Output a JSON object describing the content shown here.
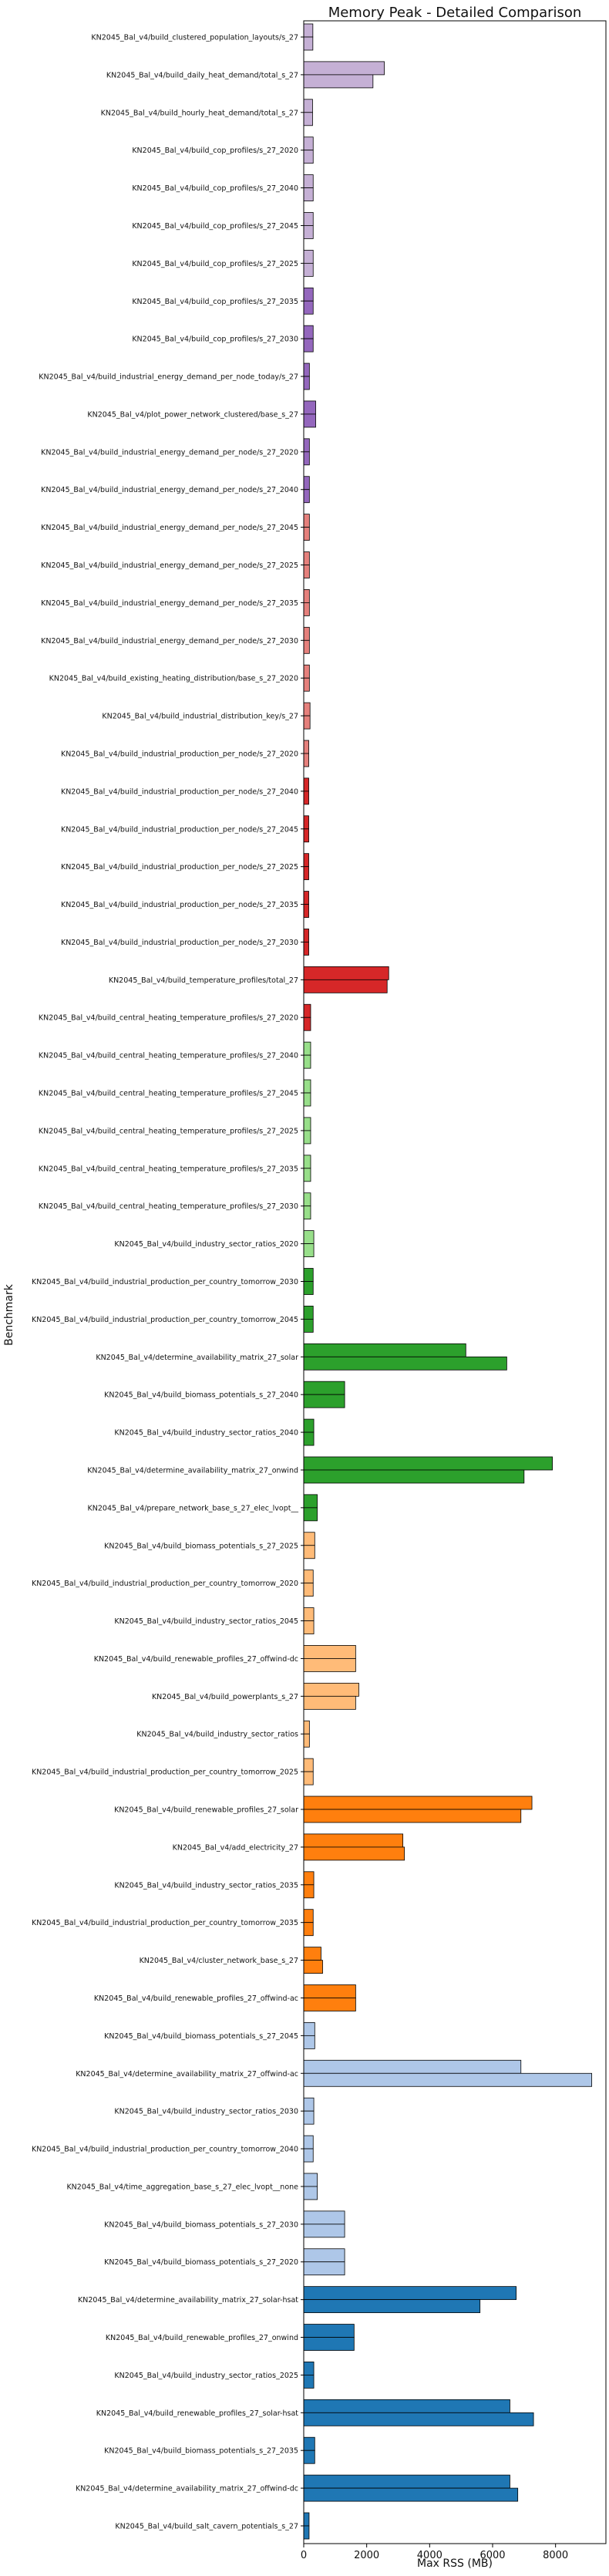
{
  "chart_data": {
    "type": "bar",
    "orientation": "horizontal",
    "title": "Memory Peak - Detailed Comparison",
    "xlabel": "Max RSS (MB)",
    "ylabel": "Benchmark",
    "xlim": [
      0,
      9600
    ],
    "xticks": [
      0,
      2000,
      4000,
      6000,
      8000
    ],
    "grid": false,
    "legend": "none",
    "benchmarks": [
      {
        "label": "KN2045_Bal_v4/build_clustered_population_layouts/s_27",
        "values": [
          290,
          290
        ],
        "color": "#c5b0d5"
      },
      {
        "label": "KN2045_Bal_v4/build_daily_heat_demand/total_s_27",
        "values": [
          2560,
          2200
        ],
        "color": "#c5b0d5"
      },
      {
        "label": "KN2045_Bal_v4/build_hourly_heat_demand/total_s_27",
        "values": [
          280,
          280
        ],
        "color": "#c5b0d5"
      },
      {
        "label": "KN2045_Bal_v4/build_cop_profiles/s_27_2020",
        "values": [
          300,
          300
        ],
        "color": "#c5b0d5"
      },
      {
        "label": "KN2045_Bal_v4/build_cop_profiles/s_27_2040",
        "values": [
          300,
          300
        ],
        "color": "#c5b0d5"
      },
      {
        "label": "KN2045_Bal_v4/build_cop_profiles/s_27_2045",
        "values": [
          300,
          300
        ],
        "color": "#c5b0d5"
      },
      {
        "label": "KN2045_Bal_v4/build_cop_profiles/s_27_2025",
        "values": [
          300,
          300
        ],
        "color": "#c5b0d5"
      },
      {
        "label": "KN2045_Bal_v4/build_cop_profiles/s_27_2035",
        "values": [
          300,
          300
        ],
        "color": "#9467bd"
      },
      {
        "label": "KN2045_Bal_v4/build_cop_profiles/s_27_2030",
        "values": [
          300,
          300
        ],
        "color": "#9467bd"
      },
      {
        "label": "KN2045_Bal_v4/build_industrial_energy_demand_per_node_today/s_27",
        "values": [
          180,
          180
        ],
        "color": "#9467bd"
      },
      {
        "label": "KN2045_Bal_v4/plot_power_network_clustered/base_s_27",
        "values": [
          380,
          380
        ],
        "color": "#9467bd"
      },
      {
        "label": "KN2045_Bal_v4/build_industrial_energy_demand_per_node/s_27_2020",
        "values": [
          180,
          180
        ],
        "color": "#9467bd"
      },
      {
        "label": "KN2045_Bal_v4/build_industrial_energy_demand_per_node/s_27_2040",
        "values": [
          180,
          180
        ],
        "color": "#9467bd"
      },
      {
        "label": "KN2045_Bal_v4/build_industrial_energy_demand_per_node/s_27_2045",
        "values": [
          180,
          180
        ],
        "color": "#e5807c"
      },
      {
        "label": "KN2045_Bal_v4/build_industrial_energy_demand_per_node/s_27_2025",
        "values": [
          180,
          180
        ],
        "color": "#e5807c"
      },
      {
        "label": "KN2045_Bal_v4/build_industrial_energy_demand_per_node/s_27_2035",
        "values": [
          180,
          180
        ],
        "color": "#e5807c"
      },
      {
        "label": "KN2045_Bal_v4/build_industrial_energy_demand_per_node/s_27_2030",
        "values": [
          180,
          180
        ],
        "color": "#e5807c"
      },
      {
        "label": "KN2045_Bal_v4/build_existing_heating_distribution/base_s_27_2020",
        "values": [
          180,
          180
        ],
        "color": "#e5807c"
      },
      {
        "label": "KN2045_Bal_v4/build_industrial_distribution_key/s_27",
        "values": [
          200,
          200
        ],
        "color": "#e5807c"
      },
      {
        "label": "KN2045_Bal_v4/build_industrial_production_per_node/s_27_2020",
        "values": [
          160,
          160
        ],
        "color": "#e5807c"
      },
      {
        "label": "KN2045_Bal_v4/build_industrial_production_per_node/s_27_2040",
        "values": [
          160,
          160
        ],
        "color": "#d62728"
      },
      {
        "label": "KN2045_Bal_v4/build_industrial_production_per_node/s_27_2045",
        "values": [
          160,
          160
        ],
        "color": "#d62728"
      },
      {
        "label": "KN2045_Bal_v4/build_industrial_production_per_node/s_27_2025",
        "values": [
          160,
          160
        ],
        "color": "#d62728"
      },
      {
        "label": "KN2045_Bal_v4/build_industrial_production_per_node/s_27_2035",
        "values": [
          160,
          160
        ],
        "color": "#d62728"
      },
      {
        "label": "KN2045_Bal_v4/build_industrial_production_per_node/s_27_2030",
        "values": [
          160,
          160
        ],
        "color": "#d62728"
      },
      {
        "label": "KN2045_Bal_v4/build_temperature_profiles/total_27",
        "values": [
          2700,
          2650
        ],
        "color": "#d62728"
      },
      {
        "label": "KN2045_Bal_v4/build_central_heating_temperature_profiles/s_27_2020",
        "values": [
          220,
          220
        ],
        "color": "#d62728"
      },
      {
        "label": "KN2045_Bal_v4/build_central_heating_temperature_profiles/s_27_2040",
        "values": [
          220,
          220
        ],
        "color": "#98df8a"
      },
      {
        "label": "KN2045_Bal_v4/build_central_heating_temperature_profiles/s_27_2045",
        "values": [
          220,
          220
        ],
        "color": "#98df8a"
      },
      {
        "label": "KN2045_Bal_v4/build_central_heating_temperature_profiles/s_27_2025",
        "values": [
          220,
          220
        ],
        "color": "#98df8a"
      },
      {
        "label": "KN2045_Bal_v4/build_central_heating_temperature_profiles/s_27_2035",
        "values": [
          220,
          220
        ],
        "color": "#98df8a"
      },
      {
        "label": "KN2045_Bal_v4/build_central_heating_temperature_profiles/s_27_2030",
        "values": [
          220,
          220
        ],
        "color": "#98df8a"
      },
      {
        "label": "KN2045_Bal_v4/build_industry_sector_ratios_2020",
        "values": [
          320,
          320
        ],
        "color": "#98df8a"
      },
      {
        "label": "KN2045_Bal_v4/build_industrial_production_per_country_tomorrow_2030",
        "values": [
          300,
          300
        ],
        "color": "#2ca02c"
      },
      {
        "label": "KN2045_Bal_v4/build_industrial_production_per_country_tomorrow_2045",
        "values": [
          300,
          300
        ],
        "color": "#2ca02c"
      },
      {
        "label": "KN2045_Bal_v4/determine_availability_matrix_27_solar",
        "values": [
          5150,
          6450
        ],
        "color": "#2ca02c"
      },
      {
        "label": "KN2045_Bal_v4/build_biomass_potentials_s_27_2040",
        "values": [
          1300,
          1300
        ],
        "color": "#2ca02c"
      },
      {
        "label": "KN2045_Bal_v4/build_industry_sector_ratios_2040",
        "values": [
          320,
          320
        ],
        "color": "#2ca02c"
      },
      {
        "label": "KN2045_Bal_v4/determine_availability_matrix_27_onwind",
        "values": [
          7900,
          7000
        ],
        "color": "#2ca02c"
      },
      {
        "label": "KN2045_Bal_v4/prepare_network_base_s_27_elec_lvopt__",
        "values": [
          430,
          430
        ],
        "color": "#2ca02c"
      },
      {
        "label": "KN2045_Bal_v4/build_biomass_potentials_s_27_2025",
        "values": [
          350,
          350
        ],
        "color": "#ffbb78"
      },
      {
        "label": "KN2045_Bal_v4/build_industrial_production_per_country_tomorrow_2020",
        "values": [
          300,
          300
        ],
        "color": "#ffbb78"
      },
      {
        "label": "KN2045_Bal_v4/build_industry_sector_ratios_2045",
        "values": [
          320,
          320
        ],
        "color": "#ffbb78"
      },
      {
        "label": "KN2045_Bal_v4/build_renewable_profiles_27_offwind-dc",
        "values": [
          1650,
          1650
        ],
        "color": "#ffbb78"
      },
      {
        "label": "KN2045_Bal_v4/build_powerplants_s_27",
        "values": [
          1750,
          1650
        ],
        "color": "#ffbb78"
      },
      {
        "label": "KN2045_Bal_v4/build_industry_sector_ratios",
        "values": [
          180,
          180
        ],
        "color": "#ffbb78"
      },
      {
        "label": "KN2045_Bal_v4/build_industrial_production_per_country_tomorrow_2025",
        "values": [
          300,
          300
        ],
        "color": "#ffbb78"
      },
      {
        "label": "KN2045_Bal_v4/build_renewable_profiles_27_solar",
        "values": [
          7250,
          6900
        ],
        "color": "#ff7f0e"
      },
      {
        "label": "KN2045_Bal_v4/add_electricity_27",
        "values": [
          3150,
          3200
        ],
        "color": "#ff7f0e"
      },
      {
        "label": "KN2045_Bal_v4/build_industry_sector_ratios_2035",
        "values": [
          320,
          320
        ],
        "color": "#ff7f0e"
      },
      {
        "label": "KN2045_Bal_v4/build_industrial_production_per_country_tomorrow_2035",
        "values": [
          300,
          300
        ],
        "color": "#ff7f0e"
      },
      {
        "label": "KN2045_Bal_v4/cluster_network_base_s_27",
        "values": [
          550,
          600
        ],
        "color": "#ff7f0e"
      },
      {
        "label": "KN2045_Bal_v4/build_renewable_profiles_27_offwind-ac",
        "values": [
          1650,
          1650
        ],
        "color": "#ff7f0e"
      },
      {
        "label": "KN2045_Bal_v4/build_biomass_potentials_s_27_2045",
        "values": [
          350,
          350
        ],
        "color": "#aec7e8"
      },
      {
        "label": "KN2045_Bal_v4/determine_availability_matrix_27_offwind-ac",
        "values": [
          6900,
          9150
        ],
        "color": "#aec7e8"
      },
      {
        "label": "KN2045_Bal_v4/build_industry_sector_ratios_2030",
        "values": [
          320,
          320
        ],
        "color": "#aec7e8"
      },
      {
        "label": "KN2045_Bal_v4/build_industrial_production_per_country_tomorrow_2040",
        "values": [
          300,
          300
        ],
        "color": "#aec7e8"
      },
      {
        "label": "KN2045_Bal_v4/time_aggregation_base_s_27_elec_lvopt__none",
        "values": [
          430,
          430
        ],
        "color": "#aec7e8"
      },
      {
        "label": "KN2045_Bal_v4/build_biomass_potentials_s_27_2030",
        "values": [
          1300,
          1300
        ],
        "color": "#aec7e8"
      },
      {
        "label": "KN2045_Bal_v4/build_biomass_potentials_s_27_2020",
        "values": [
          1300,
          1300
        ],
        "color": "#aec7e8"
      },
      {
        "label": "KN2045_Bal_v4/determine_availability_matrix_27_solar-hsat",
        "values": [
          6750,
          5600
        ],
        "color": "#1f77b4"
      },
      {
        "label": "KN2045_Bal_v4/build_renewable_profiles_27_onwind",
        "values": [
          1600,
          1600
        ],
        "color": "#1f77b4"
      },
      {
        "label": "KN2045_Bal_v4/build_industry_sector_ratios_2025",
        "values": [
          320,
          320
        ],
        "color": "#1f77b4"
      },
      {
        "label": "KN2045_Bal_v4/build_renewable_profiles_27_solar-hsat",
        "values": [
          6550,
          7300
        ],
        "color": "#1f77b4"
      },
      {
        "label": "KN2045_Bal_v4/build_biomass_potentials_s_27_2035",
        "values": [
          350,
          350
        ],
        "color": "#1f77b4"
      },
      {
        "label": "KN2045_Bal_v4/determine_availability_matrix_27_offwind-dc",
        "values": [
          6550,
          6800
        ],
        "color": "#1f77b4"
      },
      {
        "label": "KN2045_Bal_v4/build_salt_cavern_potentials_s_27",
        "values": [
          170,
          170
        ],
        "color": "#1f77b4"
      }
    ]
  }
}
